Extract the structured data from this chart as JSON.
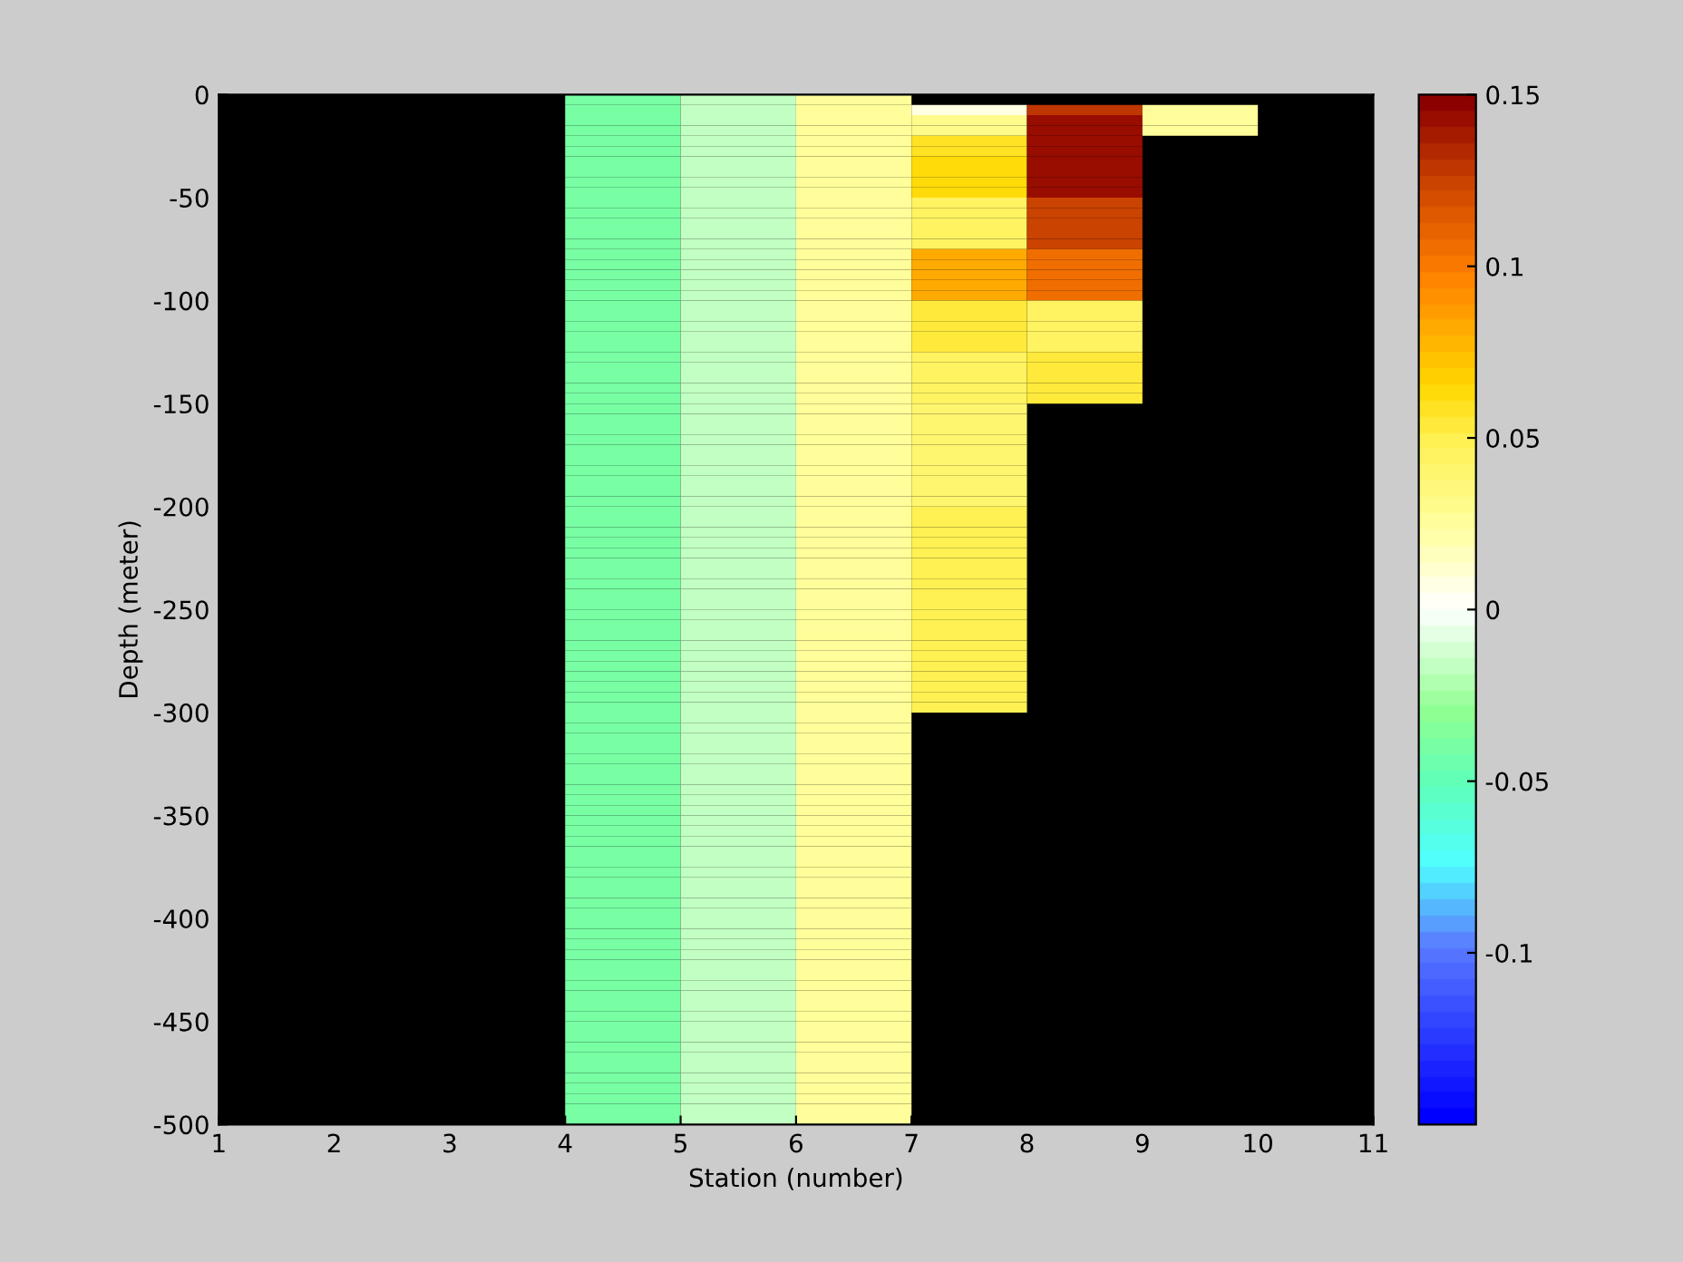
{
  "chart_data": {
    "type": "heatmap",
    "xlabel": "Station (number)",
    "ylabel": "Depth (meter)",
    "x": [
      1.5,
      2.5,
      3.5,
      4.5,
      5.5,
      6.5,
      7.5,
      8.5,
      9.5,
      10.5
    ],
    "y": [
      -2.5,
      -7.5,
      -12.5,
      -17.5,
      -22.5,
      -27.5,
      -32.5,
      -37.5,
      -42.5,
      -47.5,
      -52.5,
      -57.5,
      -62.5,
      -67.5,
      -72.5,
      -77.5,
      -82.5,
      -87.5,
      -92.5,
      -97.5,
      -102.5,
      -107.5,
      -112.5,
      -117.5,
      -122.5,
      -127.5,
      -132.5,
      -137.5,
      -142.5,
      -147.5,
      -152.5,
      -157.5,
      -162.5,
      -167.5,
      -172.5,
      -177.5,
      -182.5,
      -187.5,
      -192.5,
      -197.5,
      -202.5,
      -207.5,
      -212.5,
      -217.5,
      -222.5,
      -227.5,
      -232.5,
      -237.5,
      -242.5,
      -247.5,
      -252.5,
      -257.5,
      -262.5,
      -267.5,
      -272.5,
      -277.5,
      -282.5,
      -287.5,
      -292.5,
      -297.5,
      -302.5,
      -307.5,
      -312.5,
      -317.5,
      -322.5,
      -327.5,
      -332.5,
      -337.5,
      -342.5,
      -347.5,
      -352.5,
      -357.5,
      -362.5,
      -367.5,
      -372.5,
      -377.5,
      -382.5,
      -387.5,
      -392.5,
      -397.5,
      -402.5,
      -407.5,
      -412.5,
      -417.5,
      -422.5,
      -427.5,
      -432.5,
      -437.5,
      -442.5,
      -447.5,
      -452.5,
      -457.5,
      -462.5,
      -467.5,
      -472.5,
      -477.5,
      -482.5,
      -487.5,
      -492.5,
      -497.5
    ],
    "xlim": [
      1,
      11
    ],
    "xticks": [
      1,
      2,
      3,
      4,
      5,
      6,
      7,
      8,
      9,
      10,
      11
    ],
    "ylim": [
      -500,
      0
    ],
    "yticks": [
      -500,
      -450,
      -400,
      -350,
      -300,
      -250,
      -200,
      -150,
      -100,
      -50,
      0
    ],
    "clim": [
      -0.15,
      0.15
    ],
    "cticks": [
      -0.1,
      -0.05,
      0,
      0.05,
      0.1,
      0.15
    ],
    "cells": [
      [
        null,
        null,
        null,
        -0.04,
        -0.015,
        0.025,
        null,
        null,
        null,
        null
      ],
      [
        null,
        null,
        null,
        -0.04,
        -0.015,
        0.025,
        0.005,
        0.13,
        0.025,
        null
      ],
      [
        null,
        null,
        null,
        -0.04,
        -0.015,
        0.025,
        0.03,
        0.145,
        0.025,
        null
      ],
      [
        null,
        null,
        null,
        -0.04,
        -0.015,
        0.025,
        0.03,
        0.145,
        0.025,
        null
      ],
      [
        null,
        null,
        null,
        -0.04,
        -0.015,
        0.025,
        0.06,
        0.145,
        null,
        null
      ],
      [
        null,
        null,
        null,
        -0.04,
        -0.015,
        0.025,
        0.06,
        0.145,
        null,
        null
      ],
      [
        null,
        null,
        null,
        -0.04,
        -0.015,
        0.025,
        0.065,
        0.145,
        null,
        null
      ],
      [
        null,
        null,
        null,
        -0.04,
        -0.015,
        0.025,
        0.065,
        0.145,
        null,
        null
      ],
      [
        null,
        null,
        null,
        -0.04,
        -0.015,
        0.025,
        0.065,
        0.145,
        null,
        null
      ],
      [
        null,
        null,
        null,
        -0.04,
        -0.015,
        0.025,
        0.065,
        0.145,
        null,
        null
      ],
      [
        null,
        null,
        null,
        -0.04,
        -0.015,
        0.025,
        0.045,
        0.125,
        null,
        null
      ],
      [
        null,
        null,
        null,
        -0.04,
        -0.015,
        0.025,
        0.045,
        0.125,
        null,
        null
      ],
      [
        null,
        null,
        null,
        -0.04,
        -0.015,
        0.025,
        0.045,
        0.125,
        null,
        null
      ],
      [
        null,
        null,
        null,
        -0.04,
        -0.015,
        0.025,
        0.045,
        0.125,
        null,
        null
      ],
      [
        null,
        null,
        null,
        -0.04,
        -0.015,
        0.025,
        0.045,
        0.125,
        null,
        null
      ],
      [
        null,
        null,
        null,
        -0.04,
        -0.015,
        0.025,
        0.08,
        0.105,
        null,
        null
      ],
      [
        null,
        null,
        null,
        -0.04,
        -0.015,
        0.025,
        0.08,
        0.105,
        null,
        null
      ],
      [
        null,
        null,
        null,
        -0.04,
        -0.015,
        0.025,
        0.08,
        0.105,
        null,
        null
      ],
      [
        null,
        null,
        null,
        -0.04,
        -0.015,
        0.025,
        0.08,
        0.105,
        null,
        null
      ],
      [
        null,
        null,
        null,
        -0.04,
        -0.015,
        0.025,
        0.08,
        0.105,
        null,
        null
      ],
      [
        null,
        null,
        null,
        -0.04,
        -0.015,
        0.025,
        0.055,
        0.045,
        null,
        null
      ],
      [
        null,
        null,
        null,
        -0.04,
        -0.015,
        0.025,
        0.055,
        0.045,
        null,
        null
      ],
      [
        null,
        null,
        null,
        -0.04,
        -0.015,
        0.025,
        0.055,
        0.045,
        null,
        null
      ],
      [
        null,
        null,
        null,
        -0.04,
        -0.015,
        0.025,
        0.055,
        0.045,
        null,
        null
      ],
      [
        null,
        null,
        null,
        -0.04,
        -0.015,
        0.025,
        0.055,
        0.045,
        null,
        null
      ],
      [
        null,
        null,
        null,
        -0.04,
        -0.015,
        0.025,
        0.045,
        0.055,
        null,
        null
      ],
      [
        null,
        null,
        null,
        -0.04,
        -0.015,
        0.025,
        0.045,
        0.055,
        null,
        null
      ],
      [
        null,
        null,
        null,
        -0.04,
        -0.015,
        0.025,
        0.045,
        0.055,
        null,
        null
      ],
      [
        null,
        null,
        null,
        -0.04,
        -0.015,
        0.025,
        0.045,
        0.055,
        null,
        null
      ],
      [
        null,
        null,
        null,
        -0.04,
        -0.015,
        0.025,
        0.045,
        0.055,
        null,
        null
      ],
      [
        null,
        null,
        null,
        -0.04,
        -0.015,
        0.025,
        0.04,
        null,
        null,
        null
      ],
      [
        null,
        null,
        null,
        -0.04,
        -0.015,
        0.025,
        0.04,
        null,
        null,
        null
      ],
      [
        null,
        null,
        null,
        -0.04,
        -0.015,
        0.025,
        0.04,
        null,
        null,
        null
      ],
      [
        null,
        null,
        null,
        -0.04,
        -0.015,
        0.025,
        0.04,
        null,
        null,
        null
      ],
      [
        null,
        null,
        null,
        -0.04,
        -0.015,
        0.025,
        0.04,
        null,
        null,
        null
      ],
      [
        null,
        null,
        null,
        -0.04,
        -0.015,
        0.025,
        0.04,
        null,
        null,
        null
      ],
      [
        null,
        null,
        null,
        -0.04,
        -0.015,
        0.025,
        0.04,
        null,
        null,
        null
      ],
      [
        null,
        null,
        null,
        -0.04,
        -0.015,
        0.025,
        0.04,
        null,
        null,
        null
      ],
      [
        null,
        null,
        null,
        -0.04,
        -0.015,
        0.025,
        0.04,
        null,
        null,
        null
      ],
      [
        null,
        null,
        null,
        -0.04,
        -0.015,
        0.025,
        0.04,
        null,
        null,
        null
      ],
      [
        null,
        null,
        null,
        -0.04,
        -0.015,
        0.025,
        0.05,
        null,
        null,
        null
      ],
      [
        null,
        null,
        null,
        -0.04,
        -0.015,
        0.025,
        0.05,
        null,
        null,
        null
      ],
      [
        null,
        null,
        null,
        -0.04,
        -0.015,
        0.025,
        0.05,
        null,
        null,
        null
      ],
      [
        null,
        null,
        null,
        -0.04,
        -0.015,
        0.025,
        0.05,
        null,
        null,
        null
      ],
      [
        null,
        null,
        null,
        -0.04,
        -0.015,
        0.025,
        0.05,
        null,
        null,
        null
      ],
      [
        null,
        null,
        null,
        -0.04,
        -0.015,
        0.025,
        0.05,
        null,
        null,
        null
      ],
      [
        null,
        null,
        null,
        -0.04,
        -0.015,
        0.025,
        0.05,
        null,
        null,
        null
      ],
      [
        null,
        null,
        null,
        -0.04,
        -0.015,
        0.025,
        0.05,
        null,
        null,
        null
      ],
      [
        null,
        null,
        null,
        -0.04,
        -0.015,
        0.025,
        0.05,
        null,
        null,
        null
      ],
      [
        null,
        null,
        null,
        -0.04,
        -0.015,
        0.025,
        0.05,
        null,
        null,
        null
      ],
      [
        null,
        null,
        null,
        -0.04,
        -0.015,
        0.025,
        0.05,
        null,
        null,
        null
      ],
      [
        null,
        null,
        null,
        -0.04,
        -0.015,
        0.025,
        0.05,
        null,
        null,
        null
      ],
      [
        null,
        null,
        null,
        -0.04,
        -0.015,
        0.025,
        0.05,
        null,
        null,
        null
      ],
      [
        null,
        null,
        null,
        -0.04,
        -0.015,
        0.025,
        0.05,
        null,
        null,
        null
      ],
      [
        null,
        null,
        null,
        -0.04,
        -0.015,
        0.025,
        0.05,
        null,
        null,
        null
      ],
      [
        null,
        null,
        null,
        -0.04,
        -0.015,
        0.025,
        0.05,
        null,
        null,
        null
      ],
      [
        null,
        null,
        null,
        -0.04,
        -0.015,
        0.025,
        0.05,
        null,
        null,
        null
      ],
      [
        null,
        null,
        null,
        -0.04,
        -0.015,
        0.025,
        0.05,
        null,
        null,
        null
      ],
      [
        null,
        null,
        null,
        -0.04,
        -0.015,
        0.025,
        0.05,
        null,
        null,
        null
      ],
      [
        null,
        null,
        null,
        -0.04,
        -0.015,
        0.025,
        0.05,
        null,
        null,
        null
      ],
      [
        null,
        null,
        null,
        -0.04,
        -0.015,
        0.025,
        null,
        null,
        null,
        null
      ],
      [
        null,
        null,
        null,
        -0.04,
        -0.015,
        0.025,
        null,
        null,
        null,
        null
      ],
      [
        null,
        null,
        null,
        -0.04,
        -0.015,
        0.025,
        null,
        null,
        null,
        null
      ],
      [
        null,
        null,
        null,
        -0.04,
        -0.015,
        0.025,
        null,
        null,
        null,
        null
      ],
      [
        null,
        null,
        null,
        -0.04,
        -0.015,
        0.025,
        null,
        null,
        null,
        null
      ],
      [
        null,
        null,
        null,
        -0.04,
        -0.015,
        0.025,
        null,
        null,
        null,
        null
      ],
      [
        null,
        null,
        null,
        -0.04,
        -0.015,
        0.025,
        null,
        null,
        null,
        null
      ],
      [
        null,
        null,
        null,
        -0.04,
        -0.015,
        0.025,
        null,
        null,
        null,
        null
      ],
      [
        null,
        null,
        null,
        -0.04,
        -0.015,
        0.025,
        null,
        null,
        null,
        null
      ],
      [
        null,
        null,
        null,
        -0.04,
        -0.015,
        0.025,
        null,
        null,
        null,
        null
      ],
      [
        null,
        null,
        null,
        -0.04,
        -0.015,
        0.025,
        null,
        null,
        null,
        null
      ],
      [
        null,
        null,
        null,
        -0.04,
        -0.015,
        0.025,
        null,
        null,
        null,
        null
      ],
      [
        null,
        null,
        null,
        -0.04,
        -0.015,
        0.025,
        null,
        null,
        null,
        null
      ],
      [
        null,
        null,
        null,
        -0.04,
        -0.015,
        0.025,
        null,
        null,
        null,
        null
      ],
      [
        null,
        null,
        null,
        -0.04,
        -0.015,
        0.025,
        null,
        null,
        null,
        null
      ],
      [
        null,
        null,
        null,
        -0.04,
        -0.015,
        0.025,
        null,
        null,
        null,
        null
      ],
      [
        null,
        null,
        null,
        -0.04,
        -0.015,
        0.025,
        null,
        null,
        null,
        null
      ],
      [
        null,
        null,
        null,
        -0.04,
        -0.015,
        0.025,
        null,
        null,
        null,
        null
      ],
      [
        null,
        null,
        null,
        -0.04,
        -0.015,
        0.025,
        null,
        null,
        null,
        null
      ],
      [
        null,
        null,
        null,
        -0.04,
        -0.015,
        0.025,
        null,
        null,
        null,
        null
      ],
      [
        null,
        null,
        null,
        -0.04,
        -0.015,
        0.025,
        null,
        null,
        null,
        null
      ],
      [
        null,
        null,
        null,
        -0.04,
        -0.015,
        0.025,
        null,
        null,
        null,
        null
      ],
      [
        null,
        null,
        null,
        -0.04,
        -0.015,
        0.025,
        null,
        null,
        null,
        null
      ],
      [
        null,
        null,
        null,
        -0.04,
        -0.015,
        0.025,
        null,
        null,
        null,
        null
      ],
      [
        null,
        null,
        null,
        -0.04,
        -0.015,
        0.025,
        null,
        null,
        null,
        null
      ],
      [
        null,
        null,
        null,
        -0.04,
        -0.015,
        0.025,
        null,
        null,
        null,
        null
      ],
      [
        null,
        null,
        null,
        -0.04,
        -0.015,
        0.025,
        null,
        null,
        null,
        null
      ],
      [
        null,
        null,
        null,
        -0.04,
        -0.015,
        0.025,
        null,
        null,
        null,
        null
      ],
      [
        null,
        null,
        null,
        -0.04,
        -0.015,
        0.025,
        null,
        null,
        null,
        null
      ],
      [
        null,
        null,
        null,
        -0.04,
        -0.015,
        0.025,
        null,
        null,
        null,
        null
      ],
      [
        null,
        null,
        null,
        -0.04,
        -0.015,
        0.025,
        null,
        null,
        null,
        null
      ],
      [
        null,
        null,
        null,
        -0.04,
        -0.015,
        0.025,
        null,
        null,
        null,
        null
      ],
      [
        null,
        null,
        null,
        -0.04,
        -0.015,
        0.025,
        null,
        null,
        null,
        null
      ],
      [
        null,
        null,
        null,
        -0.04,
        -0.015,
        0.025,
        null,
        null,
        null,
        null
      ],
      [
        null,
        null,
        null,
        -0.04,
        -0.015,
        0.025,
        null,
        null,
        null,
        null
      ],
      [
        null,
        null,
        null,
        -0.04,
        -0.015,
        0.025,
        null,
        null,
        null,
        null
      ],
      [
        null,
        null,
        null,
        -0.04,
        -0.015,
        0.025,
        null,
        null,
        null,
        null
      ],
      [
        null,
        null,
        null,
        -0.04,
        -0.015,
        0.025,
        null,
        null,
        null,
        null
      ],
      [
        null,
        null,
        null,
        -0.04,
        -0.015,
        0.025,
        null,
        null,
        null,
        null
      ],
      [
        null,
        null,
        null,
        -0.04,
        -0.015,
        0.025,
        null,
        null,
        null,
        null
      ]
    ]
  }
}
